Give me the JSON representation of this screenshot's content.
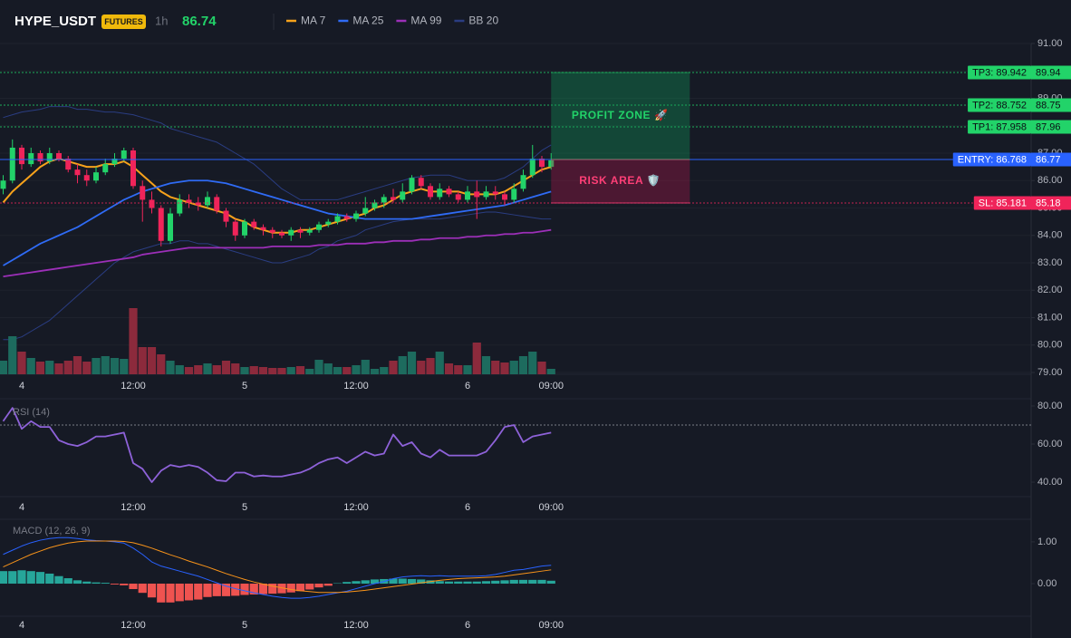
{
  "header": {
    "symbol": "HYPE_USDT",
    "badge": "FUTURES",
    "interval": "1h",
    "last_price": 86.74
  },
  "chart_data": [
    {
      "type": "candlestick",
      "categories": [
        null,
        null,
        "4",
        null,
        null,
        null,
        null,
        null,
        null,
        null,
        null,
        null,
        null,
        null,
        "12:00",
        null,
        null,
        null,
        null,
        null,
        null,
        null,
        null,
        null,
        null,
        null,
        "5",
        null,
        null,
        null,
        null,
        null,
        null,
        null,
        null,
        null,
        null,
        null,
        "12:00",
        null,
        null,
        null,
        null,
        null,
        null,
        null,
        null,
        null,
        null,
        null,
        "6",
        null,
        null,
        null,
        null,
        null,
        null,
        null,
        null,
        "09:00"
      ],
      "open": [
        85.7,
        86.0,
        87.2,
        86.6,
        87.0,
        86.7,
        87.0,
        86.8,
        86.4,
        86.2,
        86.0,
        86.3,
        86.6,
        86.8,
        87.1,
        85.8,
        85.3,
        85.0,
        83.8,
        84.8,
        85.3,
        85.2,
        85.1,
        85.4,
        84.9,
        84.5,
        84.0,
        84.5,
        84.3,
        84.2,
        84.1,
        84.0,
        84.2,
        84.1,
        84.2,
        84.4,
        84.5,
        84.7,
        84.6,
        84.8,
        85.0,
        85.2,
        85.4,
        85.3,
        85.6,
        86.1,
        85.8,
        85.4,
        85.7,
        85.5,
        85.3,
        85.6,
        85.4,
        85.6,
        85.5,
        85.3,
        85.7,
        86.2,
        86.8,
        86.5
      ],
      "high": [
        86.2,
        87.5,
        87.3,
        87.2,
        87.1,
        87.2,
        87.1,
        86.9,
        86.6,
        86.4,
        86.5,
        86.8,
        87.0,
        87.2,
        87.2,
        86.0,
        85.6,
        85.1,
        85.0,
        85.5,
        85.5,
        85.4,
        85.6,
        85.5,
        85.0,
        84.6,
        84.6,
        84.6,
        84.4,
        84.3,
        84.2,
        84.3,
        84.3,
        84.3,
        84.5,
        84.6,
        84.8,
        84.8,
        84.9,
        85.4,
        85.3,
        85.5,
        85.7,
        85.9,
        86.2,
        86.2,
        85.9,
        85.9,
        85.8,
        85.6,
        85.8,
        86.0,
        85.8,
        85.8,
        85.6,
        85.9,
        86.4,
        87.3,
        86.9,
        87.0
      ],
      "low": [
        85.5,
        85.9,
        86.4,
        86.5,
        86.6,
        86.6,
        86.7,
        86.3,
        85.9,
        85.8,
        85.9,
        86.2,
        86.5,
        86.7,
        85.7,
        84.5,
        84.8,
        83.6,
        83.7,
        84.7,
        85.0,
        84.9,
        85.0,
        84.8,
        84.3,
        83.8,
        83.9,
        84.2,
        84.0,
        83.9,
        83.9,
        83.8,
        83.9,
        84.0,
        84.1,
        84.3,
        84.4,
        84.5,
        84.5,
        84.7,
        84.9,
        85.0,
        85.2,
        85.2,
        85.5,
        85.7,
        85.3,
        85.3,
        85.4,
        85.2,
        85.2,
        84.6,
        85.3,
        85.3,
        85.1,
        85.2,
        85.6,
        86.1,
        86.3,
        86.4
      ],
      "close": [
        86.0,
        87.2,
        86.6,
        87.0,
        86.7,
        87.0,
        86.8,
        86.4,
        86.2,
        86.0,
        86.3,
        86.6,
        86.8,
        87.1,
        85.8,
        85.3,
        85.0,
        83.8,
        84.8,
        85.3,
        85.2,
        85.1,
        85.4,
        84.9,
        84.5,
        84.0,
        84.5,
        84.3,
        84.2,
        84.1,
        84.0,
        84.2,
        84.1,
        84.2,
        84.4,
        84.5,
        84.7,
        84.6,
        84.8,
        85.0,
        85.2,
        85.4,
        85.3,
        85.6,
        86.1,
        85.8,
        85.4,
        85.7,
        85.5,
        85.3,
        85.6,
        85.4,
        85.6,
        85.5,
        85.3,
        85.7,
        86.2,
        86.8,
        86.5,
        86.74
      ],
      "volume": [
        15,
        42,
        25,
        18,
        14,
        15,
        12,
        15,
        20,
        14,
        18,
        20,
        18,
        17,
        73,
        30,
        30,
        22,
        15,
        10,
        8,
        10,
        12,
        10,
        15,
        12,
        8,
        9,
        8,
        7,
        7,
        8,
        9,
        6,
        16,
        12,
        8,
        8,
        10,
        16,
        6,
        8,
        15,
        20,
        25,
        15,
        18,
        25,
        12,
        10,
        10,
        35,
        20,
        15,
        13,
        15,
        20,
        25,
        14,
        6
      ],
      "up_color": "#22d369",
      "down_color": "#f0245a",
      "volume_up_color": "#1d6b5e",
      "volume_down_color": "#8c2a3c",
      "series": [
        {
          "name": "MA 7",
          "color": "#f7a21b",
          "values": [
            85.2,
            85.6,
            85.9,
            86.2,
            86.5,
            86.7,
            86.8,
            86.7,
            86.6,
            86.5,
            86.5,
            86.6,
            86.6,
            86.7,
            86.5,
            86.2,
            85.9,
            85.6,
            85.4,
            85.3,
            85.2,
            85.1,
            85.0,
            84.9,
            84.8,
            84.6,
            84.5,
            84.3,
            84.2,
            84.1,
            84.1,
            84.1,
            84.2,
            84.2,
            84.3,
            84.4,
            84.5,
            84.6,
            84.7,
            84.8,
            85.0,
            85.1,
            85.3,
            85.5,
            85.6,
            85.7,
            85.6,
            85.6,
            85.6,
            85.6,
            85.5,
            85.5,
            85.5,
            85.5,
            85.6,
            85.8,
            86.0,
            86.2,
            86.4,
            86.5
          ]
        },
        {
          "name": "MA 25",
          "color": "#2f6bf5",
          "values": [
            82.9,
            83.1,
            83.3,
            83.5,
            83.7,
            83.85,
            84.0,
            84.15,
            84.3,
            84.5,
            84.7,
            84.9,
            85.1,
            85.3,
            85.45,
            85.6,
            85.7,
            85.8,
            85.9,
            85.95,
            86.0,
            86.0,
            86.0,
            85.95,
            85.9,
            85.8,
            85.7,
            85.6,
            85.5,
            85.4,
            85.3,
            85.2,
            85.1,
            85.0,
            84.9,
            84.8,
            84.75,
            84.7,
            84.65,
            84.6,
            84.6,
            84.6,
            84.6,
            84.6,
            84.6,
            84.65,
            84.7,
            84.75,
            84.8,
            84.85,
            84.9,
            84.95,
            85.0,
            85.05,
            85.1,
            85.2,
            85.3,
            85.4,
            85.5,
            85.6
          ]
        },
        {
          "name": "MA 99",
          "color": "#9c2fb8",
          "values": [
            82.5,
            82.55,
            82.6,
            82.65,
            82.7,
            82.75,
            82.8,
            82.85,
            82.9,
            82.95,
            83.0,
            83.05,
            83.1,
            83.15,
            83.2,
            83.3,
            83.35,
            83.4,
            83.45,
            83.5,
            83.55,
            83.55,
            83.55,
            83.55,
            83.55,
            83.55,
            83.55,
            83.55,
            83.55,
            83.6,
            83.6,
            83.6,
            83.6,
            83.6,
            83.65,
            83.65,
            83.65,
            83.7,
            83.7,
            83.7,
            83.75,
            83.75,
            83.8,
            83.8,
            83.8,
            83.85,
            83.85,
            83.9,
            83.9,
            83.9,
            83.95,
            83.95,
            84.0,
            84.0,
            84.05,
            84.05,
            84.1,
            84.1,
            84.15,
            84.2
          ]
        },
        {
          "name": "BB 20",
          "color": "#2a3d82",
          "upper": [
            88.3,
            88.4,
            88.5,
            88.55,
            88.6,
            88.7,
            88.7,
            88.7,
            88.6,
            88.6,
            88.55,
            88.5,
            88.5,
            88.45,
            88.4,
            88.3,
            88.2,
            88.1,
            87.9,
            87.8,
            87.7,
            87.6,
            87.5,
            87.4,
            87.2,
            87.0,
            86.8,
            86.6,
            86.3,
            86.0,
            85.7,
            85.5,
            85.3,
            85.3,
            85.3,
            85.3,
            85.3,
            85.4,
            85.5,
            85.6,
            85.7,
            85.8,
            85.9,
            86.0,
            86.1,
            86.15,
            86.2,
            86.2,
            86.2,
            86.1,
            86.0,
            86.0,
            86.0,
            86.0,
            86.1,
            86.3,
            86.5,
            86.8,
            87.1,
            87.3
          ],
          "lower": [
            80.2,
            80.2,
            80.3,
            80.5,
            80.7,
            80.9,
            81.2,
            81.5,
            81.8,
            82.1,
            82.4,
            82.7,
            83.0,
            83.2,
            83.4,
            83.5,
            83.6,
            83.7,
            83.7,
            83.8,
            83.8,
            83.7,
            83.7,
            83.6,
            83.5,
            83.4,
            83.3,
            83.2,
            83.1,
            83.0,
            83.0,
            83.1,
            83.2,
            83.3,
            83.5,
            83.6,
            83.8,
            83.9,
            84.0,
            84.2,
            84.3,
            84.4,
            84.5,
            84.55,
            84.6,
            84.6,
            84.6,
            84.6,
            84.65,
            84.7,
            84.75,
            84.8,
            84.85,
            84.85,
            84.8,
            84.75,
            84.7,
            84.65,
            84.6,
            84.6
          ]
        }
      ],
      "ylim": [
        79,
        91
      ],
      "yticks": [
        {
          "value": 91,
          "label": "91.00"
        },
        {
          "value": 90,
          "label": "90.00"
        },
        {
          "value": 89,
          "label": "89.00"
        },
        {
          "value": 88,
          "label": "88.00"
        },
        {
          "value": 87,
          "label": "87.00"
        },
        {
          "value": 86,
          "label": "86.00"
        },
        {
          "value": 85,
          "label": "85.00"
        },
        {
          "value": 84,
          "label": "84.00"
        },
        {
          "value": 83,
          "label": "83.00"
        },
        {
          "value": 82,
          "label": "82.00"
        },
        {
          "value": 81,
          "label": "81.00"
        },
        {
          "value": 80,
          "label": "80.00"
        },
        {
          "value": 79,
          "label": "79.00"
        }
      ],
      "grid": true,
      "levels": [
        {
          "value": 89.942,
          "label": "TP3: 89.942",
          "value_label": "89.94",
          "color": "#22d369",
          "text_color": "#0b0e14",
          "style": "dotted"
        },
        {
          "value": 88.752,
          "label": "TP2: 88.752",
          "value_label": "88.75",
          "color": "#22d369",
          "text_color": "#0b0e14",
          "style": "dotted"
        },
        {
          "value": 87.958,
          "label": "TP1: 87.958",
          "value_label": "87.96",
          "color": "#22d369",
          "text_color": "#0b0e14",
          "style": "dotted"
        },
        {
          "value": 86.768,
          "label": "ENTRY: 86.768",
          "value_label": "86.77",
          "color": "#2962ff",
          "text_color": "#ffffff",
          "style": "solid"
        },
        {
          "value": 85.181,
          "label": "SL: 85.181",
          "value_label": "85.18",
          "color": "#f0245a",
          "text_color": "#ffffff",
          "style": "dotted"
        }
      ],
      "zones": [
        {
          "label": "PROFIT ZONE 🚀",
          "top": 89.942,
          "bottom": 86.768,
          "color": "#0f9d5a",
          "text_color": "#22d369"
        },
        {
          "label": "RISK AREA 🛡️",
          "top": 86.768,
          "bottom": 85.181,
          "color": "#b3164a",
          "text_color": "#ff3f77"
        }
      ]
    },
    {
      "type": "line",
      "title": "RSI (14)",
      "color": "#8e62d9",
      "values": [
        72,
        79,
        68,
        72,
        69,
        69,
        62,
        60,
        59,
        61,
        64,
        64,
        65,
        66,
        50,
        47,
        40,
        46,
        49,
        48,
        49,
        48,
        45,
        41,
        40.5,
        45,
        45,
        43,
        43.5,
        43,
        43,
        44,
        45,
        47,
        50,
        52,
        53,
        50,
        53,
        56,
        54,
        55,
        65,
        59,
        61,
        55,
        53,
        57,
        54,
        54,
        54,
        54,
        56,
        62,
        69,
        70,
        61,
        64,
        65,
        66
      ],
      "ylim": [
        32.4,
        83.8
      ],
      "yticks": [
        {
          "value": 80,
          "label": "80.00"
        },
        {
          "value": 60,
          "label": "60.00"
        },
        {
          "value": 40,
          "label": "40.00"
        }
      ],
      "reference_line": 70
    },
    {
      "type": "macd",
      "title": "MACD (12, 26, 9)",
      "lines": [
        {
          "color": "#2962ff",
          "values": [
            0.7,
            0.8,
            0.9,
            0.98,
            1.04,
            1.08,
            1.1,
            1.1,
            1.08,
            1.05,
            1.03,
            1.02,
            1.0,
            0.97,
            0.85,
            0.7,
            0.52,
            0.42,
            0.36,
            0.3,
            0.24,
            0.18,
            0.1,
            0.02,
            -0.06,
            -0.12,
            -0.17,
            -0.22,
            -0.26,
            -0.3,
            -0.33,
            -0.35,
            -0.35,
            -0.33,
            -0.3,
            -0.26,
            -0.22,
            -0.18,
            -0.12,
            -0.06,
            0.0,
            0.05,
            0.12,
            0.16,
            0.18,
            0.19,
            0.18,
            0.19,
            0.18,
            0.18,
            0.18,
            0.18,
            0.19,
            0.22,
            0.27,
            0.32,
            0.34,
            0.38,
            0.42,
            0.44
          ]
        },
        {
          "color": "#f7931a",
          "values": [
            0.4,
            0.5,
            0.6,
            0.7,
            0.78,
            0.86,
            0.92,
            0.97,
            1.0,
            1.02,
            1.02,
            1.02,
            1.02,
            1.01,
            0.98,
            0.92,
            0.85,
            0.77,
            0.69,
            0.62,
            0.54,
            0.47,
            0.4,
            0.32,
            0.24,
            0.17,
            0.1,
            0.04,
            -0.01,
            -0.06,
            -0.1,
            -0.14,
            -0.17,
            -0.19,
            -0.21,
            -0.21,
            -0.21,
            -0.2,
            -0.18,
            -0.16,
            -0.13,
            -0.1,
            -0.07,
            -0.04,
            -0.01,
            0.02,
            0.05,
            0.08,
            0.1,
            0.12,
            0.13,
            0.14,
            0.15,
            0.16,
            0.18,
            0.21,
            0.24,
            0.27,
            0.3,
            0.33
          ]
        }
      ],
      "histogram": {
        "up_color": "#26a69a",
        "down_color": "#ef5350",
        "values": [
          0.3,
          0.3,
          0.32,
          0.3,
          0.28,
          0.24,
          0.18,
          0.13,
          0.08,
          0.05,
          0.03,
          0.02,
          -0.02,
          -0.04,
          -0.13,
          -0.22,
          -0.33,
          -0.45,
          -0.45,
          -0.42,
          -0.4,
          -0.38,
          -0.32,
          -0.3,
          -0.3,
          -0.29,
          -0.27,
          -0.26,
          -0.25,
          -0.24,
          -0.23,
          -0.21,
          -0.18,
          -0.14,
          -0.09,
          -0.05,
          0.01,
          0.04,
          0.06,
          0.08,
          0.1,
          0.11,
          0.12,
          0.12,
          0.11,
          0.1,
          0.08,
          0.06,
          0.05,
          0.05,
          0.05,
          0.05,
          0.06,
          0.07,
          0.08,
          0.09,
          0.09,
          0.09,
          0.09,
          0.07
        ]
      },
      "ylim": [
        -0.78,
        1.54
      ],
      "yticks": [
        {
          "value": 1,
          "label": "1.00"
        },
        {
          "value": 0,
          "label": "0.00"
        }
      ]
    }
  ]
}
